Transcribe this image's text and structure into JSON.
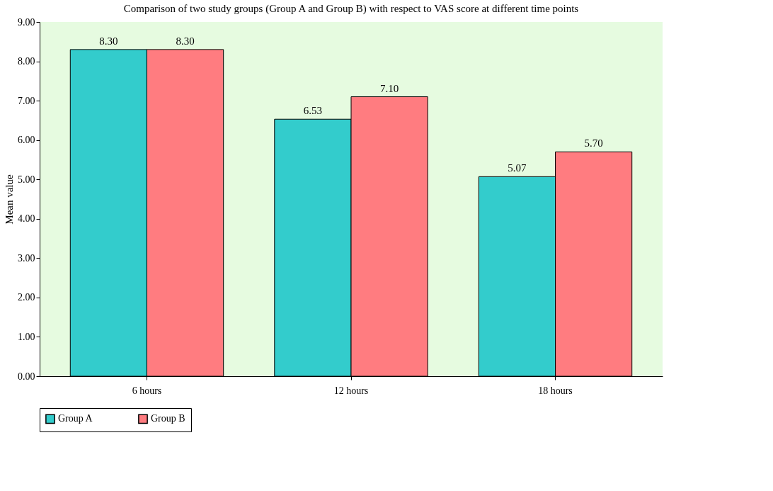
{
  "chart_data": {
    "type": "bar",
    "title": "Comparison of two study groups (Group A and Group B) with respect to VAS score at different time points",
    "ylabel": "Mean value",
    "categories": [
      "6 hours",
      "12 hours",
      "18 hours"
    ],
    "series": [
      {
        "name": "Group A",
        "color": "#33cccc",
        "values": [
          8.3,
          6.53,
          5.07
        ],
        "value_labels": [
          "8.30",
          "6.53",
          "5.07"
        ]
      },
      {
        "name": "Group B",
        "color": "#ff7c80",
        "values": [
          8.3,
          7.1,
          5.7
        ],
        "value_labels": [
          "8.30",
          "7.10",
          "5.70"
        ]
      }
    ],
    "ylim": [
      0,
      9
    ],
    "yticks": [
      {
        "value": 0,
        "label": "0.00"
      },
      {
        "value": 1,
        "label": "1.00"
      },
      {
        "value": 2,
        "label": "2.00"
      },
      {
        "value": 3,
        "label": "3.00"
      },
      {
        "value": 4,
        "label": "4.00"
      },
      {
        "value": 5,
        "label": "5.00"
      },
      {
        "value": 6,
        "label": "6.00"
      },
      {
        "value": 7,
        "label": "7.00"
      },
      {
        "value": 8,
        "label": "8.00"
      },
      {
        "value": 9,
        "label": "9.00"
      }
    ],
    "grid": false,
    "legend": "bottom"
  }
}
